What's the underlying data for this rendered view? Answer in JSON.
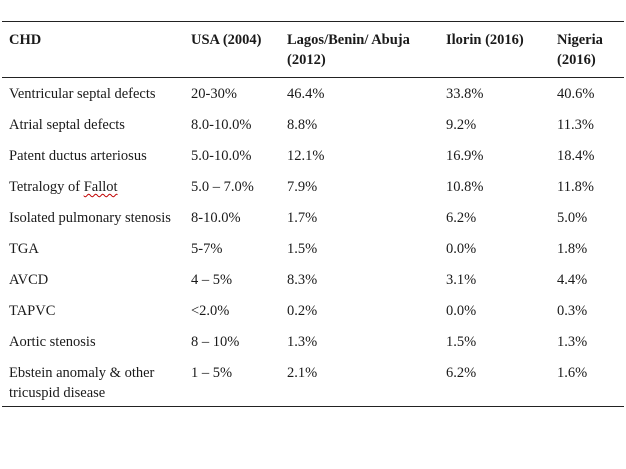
{
  "table": {
    "headers": [
      "CHD",
      "USA (2004)",
      "Lagos/Benin/ Abuja (2012)",
      "Ilorin (2016)",
      "Nigeria (2016)"
    ],
    "rows": [
      [
        "Ventricular septal defects",
        "20-30%",
        "46.4%",
        "33.8%",
        "40.6%"
      ],
      [
        "Atrial septal defects",
        "8.0-10.0%",
        "8.8%",
        "9.2%",
        "11.3%"
      ],
      [
        "Patent ductus arteriosus",
        "5.0-10.0%",
        "12.1%",
        "16.9%",
        "18.4%"
      ],
      [
        "Tetralogy of ",
        "5.0 – 7.0%",
        "7.9%",
        "10.8%",
        "11.8%"
      ],
      [
        "Isolated pulmonary stenosis",
        "8-10.0%",
        "1.7%",
        "6.2%",
        "5.0%"
      ],
      [
        "TGA",
        "5-7%",
        "1.5%",
        "0.0%",
        "1.8%"
      ],
      [
        "AVCD",
        "4 – 5%",
        "8.3%",
        "3.1%",
        "4.4%"
      ],
      [
        "TAPVC",
        "<2.0%",
        "0.2%",
        "0.0%",
        "0.3%"
      ],
      [
        "Aortic stenosis",
        "8 – 10%",
        "1.3%",
        "1.5%",
        "1.3%"
      ],
      [
        "Ebstein anomaly & other tricuspid disease",
        "1 – 5%",
        "2.1%",
        "6.2%",
        "1.6%"
      ]
    ],
    "fallot_word": "Fallot"
  }
}
